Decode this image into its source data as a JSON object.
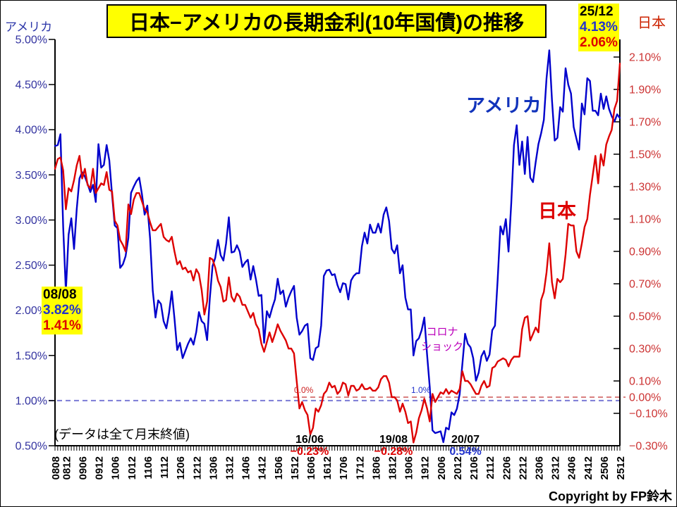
{
  "title": "日本−アメリカの長期金利(10年国債)の推移",
  "left_axis": {
    "title": "アメリカ",
    "color": "#3333A0",
    "tick_labels": [
      {
        "t": "5.00%",
        "v": 5.0
      },
      {
        "t": "4.50%",
        "v": 4.5
      },
      {
        "t": "4.00%",
        "v": 4.0
      },
      {
        "t": "3.50%",
        "v": 3.5
      },
      {
        "t": "3.00%",
        "v": 3.0
      },
      {
        "t": "2.50%",
        "v": 2.5
      },
      {
        "t": "2.00%",
        "v": 2.0
      },
      {
        "t": "1.50%",
        "v": 1.5
      },
      {
        "t": "1.00%",
        "v": 1.0
      },
      {
        "t": "0.50%",
        "v": 0.5
      }
    ]
  },
  "right_axis": {
    "title": "日本",
    "color": "#CC3333",
    "tick_labels": [
      {
        "t": "2.10%",
        "v": 2.1,
        "tick": true
      },
      {
        "t": "1.90%",
        "v": 1.9,
        "tick": true
      },
      {
        "t": "1.70%",
        "v": 1.7,
        "tick": true
      },
      {
        "t": "1.50%",
        "v": 1.5,
        "tick": true
      },
      {
        "t": "1.30%",
        "v": 1.3,
        "tick": true
      },
      {
        "t": "1.10%",
        "v": 1.1,
        "tick": true
      },
      {
        "t": "0.90%",
        "v": 0.9,
        "tick": true
      },
      {
        "t": "0.70%",
        "v": 0.7,
        "tick": true
      },
      {
        "t": "0.50%",
        "v": 0.5,
        "tick": true
      },
      {
        "t": "0.30%",
        "v": 0.3,
        "tick": true
      },
      {
        "t": "0.10%",
        "v": 0.1,
        "tick": true
      },
      {
        "t": "0.00%",
        "v": 0.0,
        "tick": false
      },
      {
        "t": "−0.10%",
        "v": -0.1,
        "tick": true
      },
      {
        "t": "−0.30%",
        "v": -0.3,
        "tick": true
      }
    ]
  },
  "labels": {
    "start": {
      "date": "08/08",
      "us": "3.82%",
      "jp": "1.41%"
    },
    "end": {
      "date": "25/12",
      "us": "4.13%",
      "jp": "2.06%"
    },
    "us_series": "アメリカ",
    "jp_series": "日本",
    "corona_line1": "コロナ",
    "corona_line2": "ショック",
    "ref_jp_zero": "0.0%",
    "ref_us_one": "1.0%",
    "jp_low_2016": {
      "date": "16/06",
      "value": "−0.23%"
    },
    "jp_low_2019": {
      "date": "19/08",
      "value": "−0.28%"
    },
    "us_low_2020": {
      "date": "20/07",
      "value": "0.54%"
    },
    "data_note": "(データは全て月末終値)",
    "copyright": "Copyright by FP鈴木"
  },
  "chart_data": {
    "type": "line",
    "title": "日本−アメリカの長期金利(10年国債)の推移",
    "x_frequency": "monthly",
    "x_start": "2008/08",
    "x_end": "2025/12",
    "x_tick_labels": [
      "0808",
      "0812",
      "0906",
      "0912",
      "1006",
      "1012",
      "1106",
      "1112",
      "1206",
      "1212",
      "1306",
      "1312",
      "1406",
      "1412",
      "1506",
      "1512",
      "1606",
      "1612",
      "1706",
      "1712",
      "1806",
      "1812",
      "1906",
      "1912",
      "2006",
      "2012",
      "2106",
      "2112",
      "2206",
      "2212",
      "2306",
      "2312",
      "2406",
      "2412",
      "2506",
      "2512"
    ],
    "left_axis": {
      "label": "アメリカ",
      "min": 0.5,
      "max": 5.0,
      "tick_step": 0.5,
      "unit": "%"
    },
    "right_axis": {
      "label": "日本",
      "min": -0.3,
      "max": 2.1,
      "tick_step": 0.2,
      "unit": "%"
    },
    "grid": false,
    "legend_position": "inline-annotations",
    "reference_lines": [
      {
        "axis": "left",
        "value": 1.0,
        "label": "1.0%",
        "style": "dashed",
        "color": "#7B7BD6"
      },
      {
        "axis": "right",
        "value": 0.0,
        "label": "0.0%",
        "style": "dashed",
        "color": "#D98080"
      }
    ],
    "series": [
      {
        "name": "アメリカ",
        "axis": "left",
        "color": "#0000CC",
        "values": [
          3.82,
          3.83,
          3.95,
          2.92,
          2.21,
          2.84,
          3.02,
          2.68,
          3.12,
          3.46,
          3.53,
          3.48,
          3.4,
          3.31,
          3.39,
          3.2,
          3.84,
          3.58,
          3.61,
          3.83,
          3.66,
          3.28,
          2.94,
          2.91,
          2.47,
          2.51,
          2.6,
          2.8,
          3.3,
          3.37,
          3.43,
          3.47,
          3.29,
          3.06,
          3.16,
          2.8,
          2.22,
          1.92,
          2.11,
          2.07,
          1.88,
          1.8,
          1.97,
          2.21,
          1.91,
          1.56,
          1.64,
          1.47,
          1.55,
          1.63,
          1.69,
          1.62,
          1.76,
          1.98,
          1.88,
          1.85,
          1.67,
          2.13,
          2.49,
          2.58,
          2.78,
          2.61,
          2.55,
          2.74,
          3.03,
          2.64,
          2.65,
          2.72,
          2.65,
          2.48,
          2.53,
          2.56,
          2.34,
          2.49,
          2.34,
          2.16,
          2.17,
          1.64,
          1.99,
          1.92,
          2.03,
          2.12,
          2.35,
          2.18,
          2.22,
          2.04,
          2.14,
          2.21,
          2.27,
          1.92,
          1.73,
          1.77,
          1.83,
          1.85,
          1.47,
          1.45,
          1.58,
          1.6,
          1.83,
          2.38,
          2.44,
          2.45,
          2.39,
          2.4,
          2.28,
          2.2,
          2.3,
          2.29,
          2.12,
          2.33,
          2.38,
          2.41,
          2.41,
          2.71,
          2.86,
          2.74,
          2.95,
          2.86,
          2.86,
          2.96,
          2.86,
          3.06,
          3.14,
          2.99,
          2.68,
          2.63,
          2.72,
          2.41,
          2.5,
          2.14,
          2.01,
          2.01,
          1.5,
          1.66,
          1.69,
          1.78,
          1.92,
          1.51,
          1.15,
          0.67,
          0.64,
          0.65,
          0.66,
          0.54,
          0.7,
          0.68,
          0.87,
          0.84,
          0.91,
          1.07,
          1.4,
          1.74,
          1.63,
          1.59,
          1.47,
          1.22,
          1.31,
          1.49,
          1.55,
          1.44,
          1.51,
          1.78,
          1.83,
          2.34,
          2.93,
          2.84,
          3.01,
          2.65,
          3.19,
          3.83,
          4.05,
          3.61,
          3.87,
          3.51,
          3.92,
          3.47,
          3.42,
          3.64,
          3.84,
          3.96,
          4.11,
          4.57,
          4.88,
          4.33,
          3.88,
          3.91,
          4.25,
          4.2,
          4.68,
          4.5,
          4.4,
          4.03,
          3.9,
          3.78,
          4.29,
          4.17,
          4.57,
          4.54,
          4.21,
          4.21,
          4.16,
          4.4,
          4.23,
          4.37,
          4.23,
          4.15,
          4.09,
          4.17,
          4.13
        ]
      },
      {
        "name": "日本",
        "axis": "right",
        "color": "#DD0000",
        "values": [
          1.41,
          1.47,
          1.48,
          1.4,
          1.16,
          1.29,
          1.27,
          1.34,
          1.43,
          1.49,
          1.35,
          1.41,
          1.31,
          1.29,
          1.41,
          1.26,
          1.29,
          1.32,
          1.31,
          1.39,
          1.28,
          1.27,
          1.09,
          1.06,
          0.97,
          0.94,
          0.9,
          1.19,
          1.13,
          1.22,
          1.26,
          1.26,
          1.21,
          1.16,
          1.14,
          1.08,
          1.03,
          1.03,
          1.05,
          1.07,
          0.99,
          0.97,
          0.96,
          0.99,
          0.9,
          0.82,
          0.84,
          0.79,
          0.8,
          0.77,
          0.78,
          0.72,
          0.79,
          0.76,
          0.66,
          0.51,
          0.59,
          0.86,
          0.85,
          0.8,
          0.72,
          0.68,
          0.59,
          0.6,
          0.74,
          0.62,
          0.59,
          0.64,
          0.62,
          0.57,
          0.57,
          0.53,
          0.49,
          0.52,
          0.45,
          0.42,
          0.33,
          0.28,
          0.34,
          0.4,
          0.34,
          0.39,
          0.45,
          0.41,
          0.38,
          0.35,
          0.3,
          0.3,
          0.27,
          0.1,
          -0.07,
          -0.03,
          -0.08,
          -0.11,
          -0.23,
          -0.19,
          -0.07,
          -0.09,
          -0.05,
          0.02,
          0.04,
          0.09,
          0.06,
          0.07,
          0.02,
          0.04,
          0.09,
          0.08,
          0.01,
          0.07,
          0.07,
          0.04,
          0.05,
          0.08,
          0.05,
          0.05,
          0.06,
          0.04,
          0.04,
          0.06,
          0.11,
          0.13,
          0.13,
          0.09,
          0.0,
          0.0,
          -0.02,
          -0.09,
          -0.04,
          -0.09,
          -0.16,
          -0.15,
          -0.28,
          -0.22,
          -0.13,
          -0.08,
          -0.01,
          -0.07,
          -0.15,
          0.02,
          -0.03,
          0.0,
          0.03,
          0.02,
          0.05,
          0.02,
          0.04,
          0.03,
          0.02,
          0.05,
          0.16,
          0.1,
          0.1,
          0.08,
          0.05,
          0.02,
          0.02,
          0.07,
          0.1,
          0.06,
          0.07,
          0.18,
          0.19,
          0.22,
          0.23,
          0.24,
          0.23,
          0.19,
          0.23,
          0.25,
          0.25,
          0.25,
          0.42,
          0.49,
          0.5,
          0.35,
          0.39,
          0.43,
          0.4,
          0.6,
          0.65,
          0.77,
          0.95,
          0.71,
          0.61,
          0.73,
          0.71,
          0.73,
          0.88,
          1.07,
          1.06,
          1.06,
          0.9,
          0.86,
          0.95,
          1.05,
          1.1,
          1.25,
          1.37,
          1.49,
          1.32,
          1.5,
          1.43,
          1.56,
          1.61,
          1.65,
          1.78,
          1.83,
          2.06
        ]
      }
    ],
    "annotated_points": [
      {
        "date": "08/08",
        "us": 3.82,
        "jp": 1.41
      },
      {
        "date": "16/06",
        "jp": -0.23
      },
      {
        "date": "19/08",
        "jp": -0.28
      },
      {
        "date": "20/07",
        "us": 0.54
      },
      {
        "date": "25/12",
        "us": 4.13,
        "jp": 2.06
      }
    ]
  }
}
